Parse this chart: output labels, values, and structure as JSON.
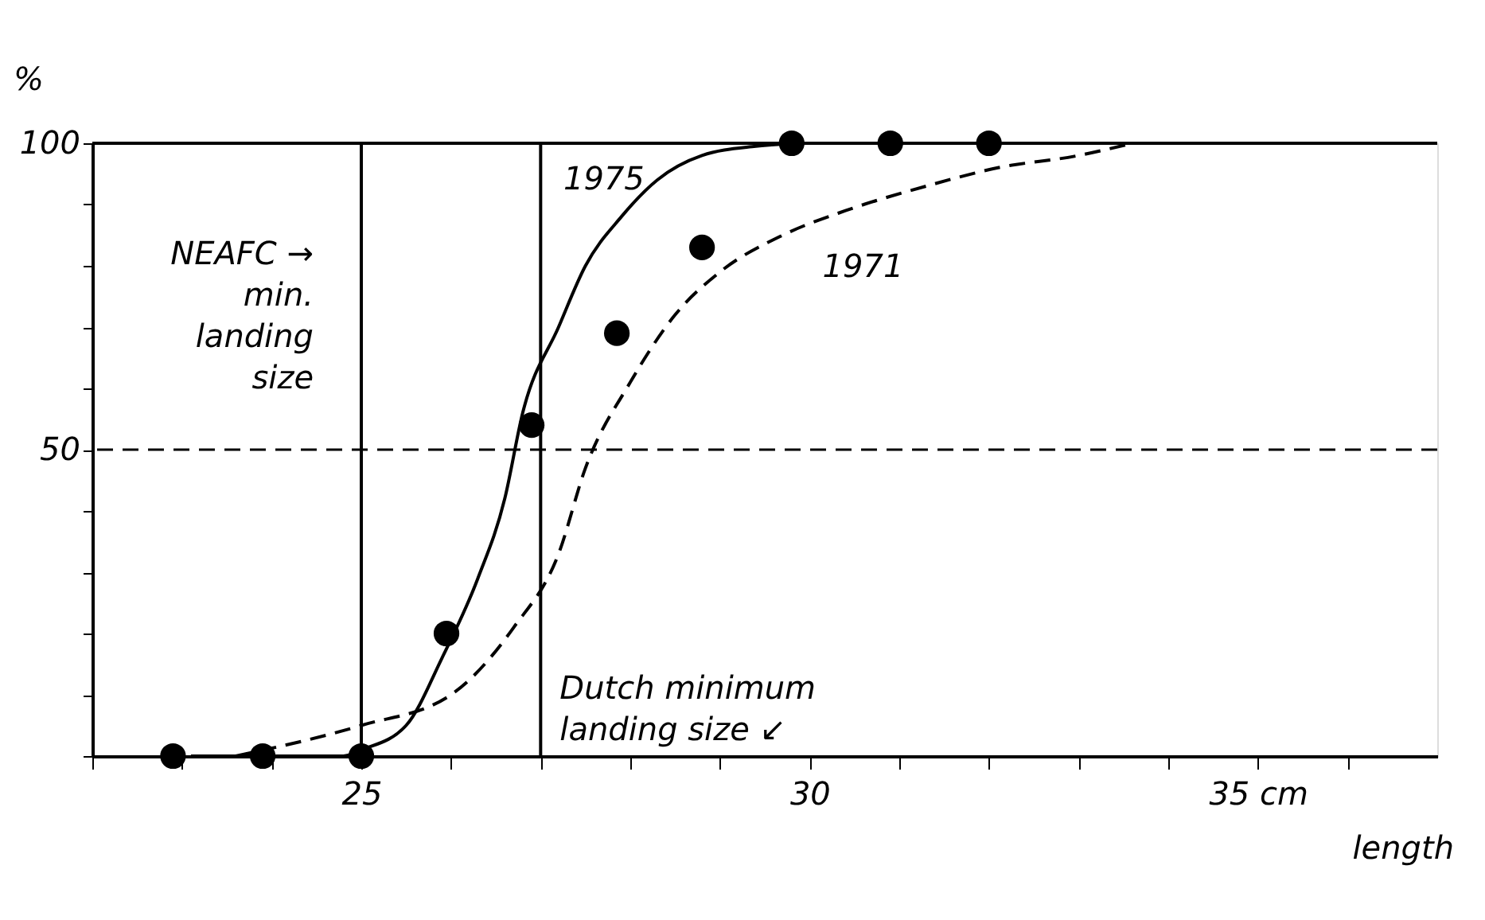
{
  "chart_data": {
    "type": "line",
    "ylabel": "%",
    "xlabel": "length",
    "xlim": [
      22,
      37
    ],
    "ylim": [
      0,
      100
    ],
    "xticks": [
      {
        "value": 22,
        "label": null
      },
      {
        "value": 23,
        "label": null
      },
      {
        "value": 24,
        "label": null
      },
      25,
      {
        "value": 26,
        "label": null
      },
      {
        "value": 27,
        "label": null
      },
      {
        "value": 28,
        "label": null
      },
      {
        "value": 29,
        "label": null
      },
      30,
      {
        "value": 31,
        "label": null
      },
      {
        "value": 32,
        "label": null
      },
      {
        "value": 33,
        "label": null
      },
      {
        "value": 34,
        "label": null
      },
      {
        "value": 35,
        "label": "35 cm"
      },
      {
        "value": 36,
        "label": null
      }
    ],
    "yticks": [
      {
        "value": 0,
        "label": null
      },
      {
        "value": 10,
        "label": null
      },
      {
        "value": 20,
        "label": null
      },
      {
        "value": 30,
        "label": null
      },
      {
        "value": 40,
        "label": null
      },
      50,
      {
        "value": 60,
        "label": null
      },
      {
        "value": 70,
        "label": null
      },
      {
        "value": 80,
        "label": null
      },
      {
        "value": 90,
        "label": null
      },
      100
    ],
    "grid": false,
    "series": [
      {
        "name": "1975",
        "line_style": "solid",
        "marker": "none",
        "color": "#000000",
        "x": [
          23.1,
          24.8,
          25.0,
          25.5,
          25.9,
          26.3,
          26.6,
          26.8,
          27.2,
          27.5,
          27.9,
          28.3,
          28.8,
          29.4,
          29.9
        ],
        "values": [
          0,
          0,
          1,
          5,
          16,
          29,
          42,
          56,
          70,
          80,
          88,
          94,
          98,
          99.5,
          100
        ]
      },
      {
        "name": "1971",
        "line_style": "dashed",
        "marker": "none",
        "color": "#000000",
        "x": [
          23.6,
          25.0,
          26.0,
          26.7,
          27.2,
          27.5,
          28.0,
          28.5,
          29.0,
          29.7,
          30.4,
          31.3,
          32.1,
          33.0,
          33.6
        ],
        "values": [
          0,
          5,
          10,
          21,
          33,
          47,
          61,
          72,
          79,
          85,
          89,
          93,
          96,
          98,
          100
        ]
      },
      {
        "type": "scatter",
        "marker": "circle",
        "color": "#000000",
        "x": [
          22.9,
          23.9,
          25.0,
          25.95,
          26.9,
          27.85,
          28.8,
          29.8,
          30.9,
          32.0
        ],
        "values": [
          0,
          0,
          0,
          20,
          54,
          69,
          83,
          100,
          100,
          100
        ]
      }
    ],
    "ref_lines": [
      {
        "axis": "x",
        "value": 25,
        "label": "NEAFC →\nmin.\nlanding\nsize",
        "line_style": "solid",
        "color": "#000000"
      },
      {
        "axis": "x",
        "value": 27,
        "label": "Dutch minimum\nlanding size ↙",
        "line_style": "solid",
        "color": "#000000"
      },
      {
        "axis": "y",
        "value": 50,
        "line_style": "dashed",
        "color": "#000000"
      }
    ]
  }
}
